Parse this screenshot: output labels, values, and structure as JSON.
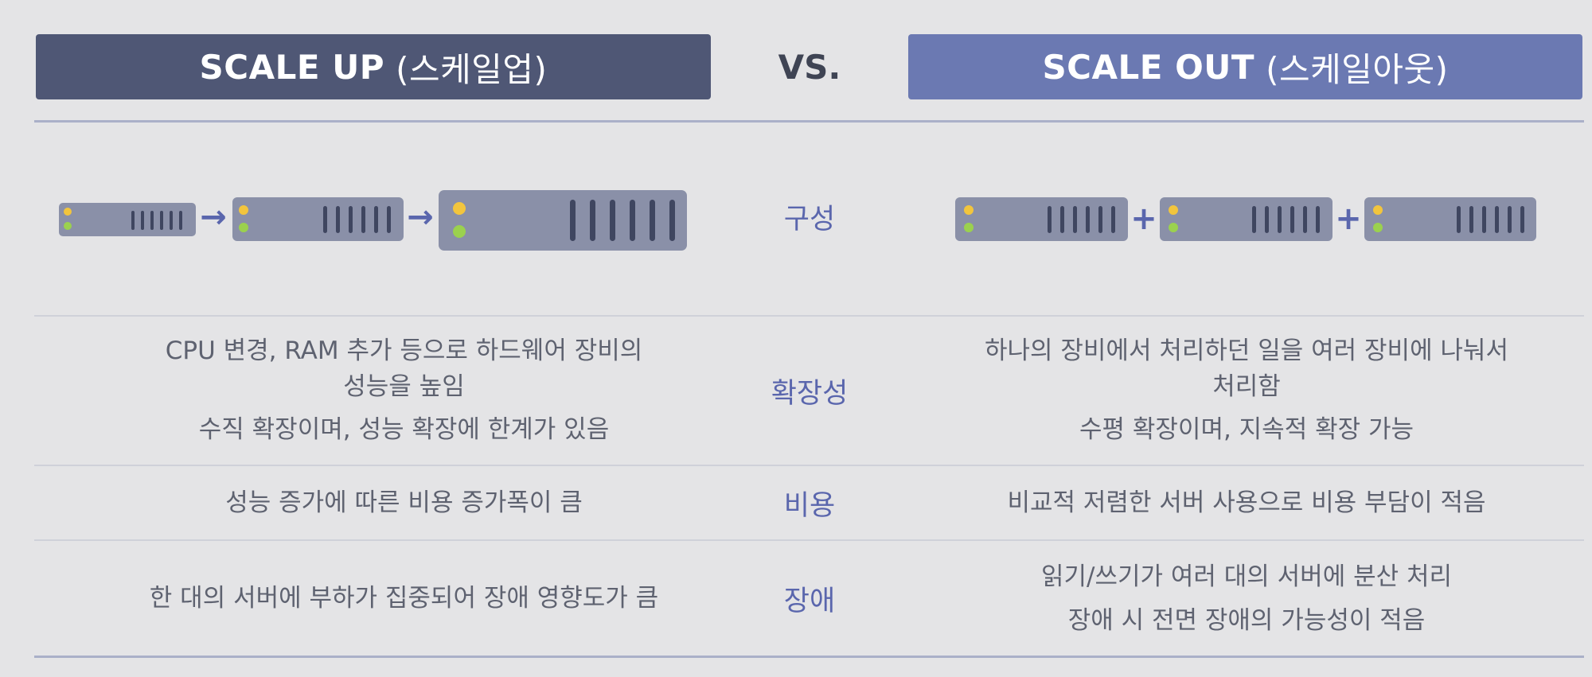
{
  "header": {
    "left": {
      "title": "SCALE UP",
      "subtitle": "(스케일업)"
    },
    "vs": "VS.",
    "right": {
      "title": "SCALE OUT",
      "subtitle": "(스케일아웃)"
    }
  },
  "rows": {
    "composition": {
      "label": "구성",
      "left_connectors": [
        "→",
        "→"
      ],
      "right_connectors": [
        "+",
        "+"
      ]
    },
    "scalability": {
      "label": "확장성",
      "left": [
        "CPU 변경, RAM 추가 등으로 하드웨어 장비의",
        "성능을 높임",
        "수직 확장이며, 성능 확장에 한계가 있음"
      ],
      "right": [
        "하나의 장비에서 처리하던 일을 여러 장비에 나눠서",
        "처리함",
        "수평 확장이며, 지속적 확장 가능"
      ]
    },
    "cost": {
      "label": "비용",
      "left": [
        "성능 증가에 따른 비용 증가폭이 큼"
      ],
      "right": [
        "비교적 저렴한 서버 사용으로 비용 부담이 적음"
      ]
    },
    "failure": {
      "label": "장애",
      "left": [
        "한 대의 서버에 부하가 집중되어 장애 영향도가 큼"
      ],
      "right": [
        "읽기/쓰기가 여러 대의 서버에 분산 처리",
        "장애 시 전면 장애의 가능성이 적음"
      ]
    }
  },
  "colors": {
    "left_header": "#4f5775",
    "right_header": "#6b79b2",
    "server_body": "#8a90a8",
    "server_vent": "#3f4660",
    "led_yellow": "#f2c53d",
    "led_green": "#9bd14e",
    "accent": "#5a66ad"
  }
}
